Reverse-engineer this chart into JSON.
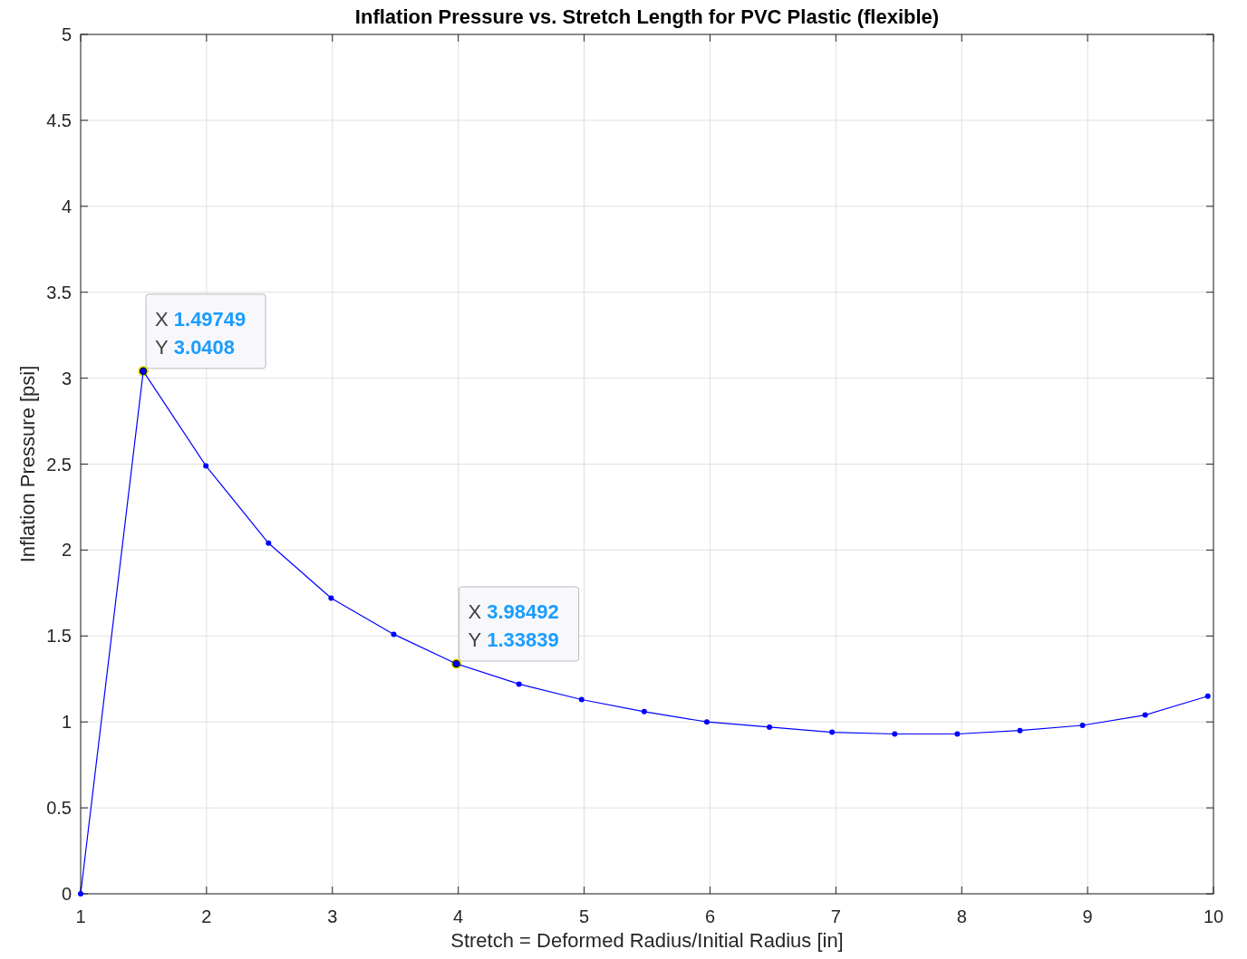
{
  "chart_data": {
    "type": "line",
    "title": "Inflation Pressure vs. Stretch Length for PVC Plastic (flexible)",
    "xlabel": "Stretch = Deformed Radius/Initial Radius [in]",
    "ylabel": "Inflation Pressure [psi]",
    "series": [
      {
        "color": "#0000ff",
        "x": [
          1,
          1.49749,
          1.995,
          2.4925,
          2.9899,
          3.4874,
          3.98492,
          4.4824,
          4.9799,
          5.4774,
          5.9749,
          6.4724,
          6.9698,
          7.4673,
          7.9648,
          8.4623,
          8.9598,
          9.4573,
          9.9548
        ],
        "values": [
          0,
          3.0408,
          2.49,
          2.04,
          1.72,
          1.51,
          1.33839,
          1.22,
          1.13,
          1.06,
          1.0,
          0.97,
          0.94,
          0.93,
          0.93,
          0.95,
          0.98,
          1.04,
          1.15
        ]
      }
    ],
    "xlim": [
      1,
      10
    ],
    "xticks": [
      1,
      2,
      3,
      4,
      5,
      6,
      7,
      8,
      9,
      10
    ],
    "ylim": [
      0,
      5
    ],
    "yticks": [
      0,
      0.5,
      1,
      1.5,
      2,
      2.5,
      3,
      3.5,
      4,
      4.5,
      5
    ],
    "grid": true,
    "marker": "circle",
    "line_style": "solid",
    "annotations": [
      {
        "text": "X 1.49749\nY 3.0408",
        "x": 1.49749,
        "y": 3.0408
      },
      {
        "text": "X 3.98492\nY 1.33839",
        "x": 3.98492,
        "y": 1.33839
      }
    ]
  }
}
